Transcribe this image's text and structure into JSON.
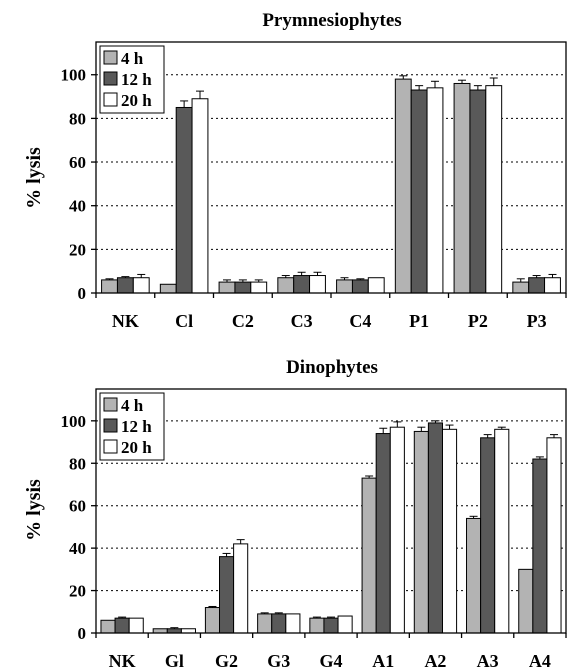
{
  "colors": {
    "4h": "#b3b3b3",
    "12h": "#595959",
    "20h": "#ffffff",
    "frame": "#000000",
    "grid": "#000000"
  },
  "chart_data": [
    {
      "type": "bar",
      "title": "Prymnesiophytes",
      "ylabel": "% lysis",
      "xlabel": "",
      "ylim": [
        0,
        115
      ],
      "yticks": [
        "0",
        "20",
        "40",
        "60",
        "80",
        "100"
      ],
      "grid": "horizontal dotted",
      "legend": "top-left",
      "categories": [
        "NK",
        "Cl",
        "C2",
        "C3",
        "C4",
        "P1",
        "P2",
        "P3"
      ],
      "series": [
        {
          "name": "4 h",
          "color_key": "4h",
          "values": [
            6,
            4,
            5,
            7,
            6,
            98,
            96,
            5
          ],
          "errors": [
            0.5,
            0,
            1,
            1,
            1,
            1.5,
            1.5,
            1.5
          ]
        },
        {
          "name": "12 h",
          "color_key": "12h",
          "values": [
            7,
            85,
            5,
            8,
            6,
            93,
            93,
            7
          ],
          "errors": [
            0.5,
            3,
            1,
            1.5,
            0.5,
            2,
            2,
            1
          ]
        },
        {
          "name": "20 h",
          "color_key": "20h",
          "values": [
            7,
            89,
            5,
            8,
            7,
            94,
            95,
            7
          ],
          "errors": [
            1.5,
            3.5,
            1,
            1.5,
            0,
            3,
            3.5,
            1.5
          ]
        }
      ]
    },
    {
      "type": "bar",
      "title": "Dinophytes",
      "ylabel": "% lysis",
      "xlabel": "",
      "ylim": [
        0,
        115
      ],
      "yticks": [
        "0",
        "20",
        "40",
        "60",
        "80",
        "100"
      ],
      "grid": "horizontal dotted",
      "legend": "top-left",
      "categories": [
        "NK",
        "Gl",
        "G2",
        "G3",
        "G4",
        "A1",
        "A2",
        "A3",
        "A4"
      ],
      "series": [
        {
          "name": "4 h",
          "color_key": "4h",
          "values": [
            6,
            2,
            12,
            9,
            7,
            73,
            95,
            54,
            30
          ],
          "errors": [
            0,
            0,
            0.5,
            0.5,
            0.5,
            1,
            2,
            1,
            0
          ]
        },
        {
          "name": "12 h",
          "color_key": "12h",
          "values": [
            7,
            2,
            36,
            9,
            7,
            94,
            99,
            92,
            82
          ],
          "errors": [
            0.5,
            0.5,
            1.5,
            0.5,
            0.5,
            2.5,
            1,
            1.5,
            1
          ]
        },
        {
          "name": "20 h",
          "color_key": "20h",
          "values": [
            7,
            2,
            42,
            9,
            8,
            97,
            96,
            96,
            92
          ],
          "errors": [
            0,
            0,
            2,
            0,
            0,
            2.5,
            2,
            1,
            1.5
          ]
        }
      ]
    }
  ]
}
